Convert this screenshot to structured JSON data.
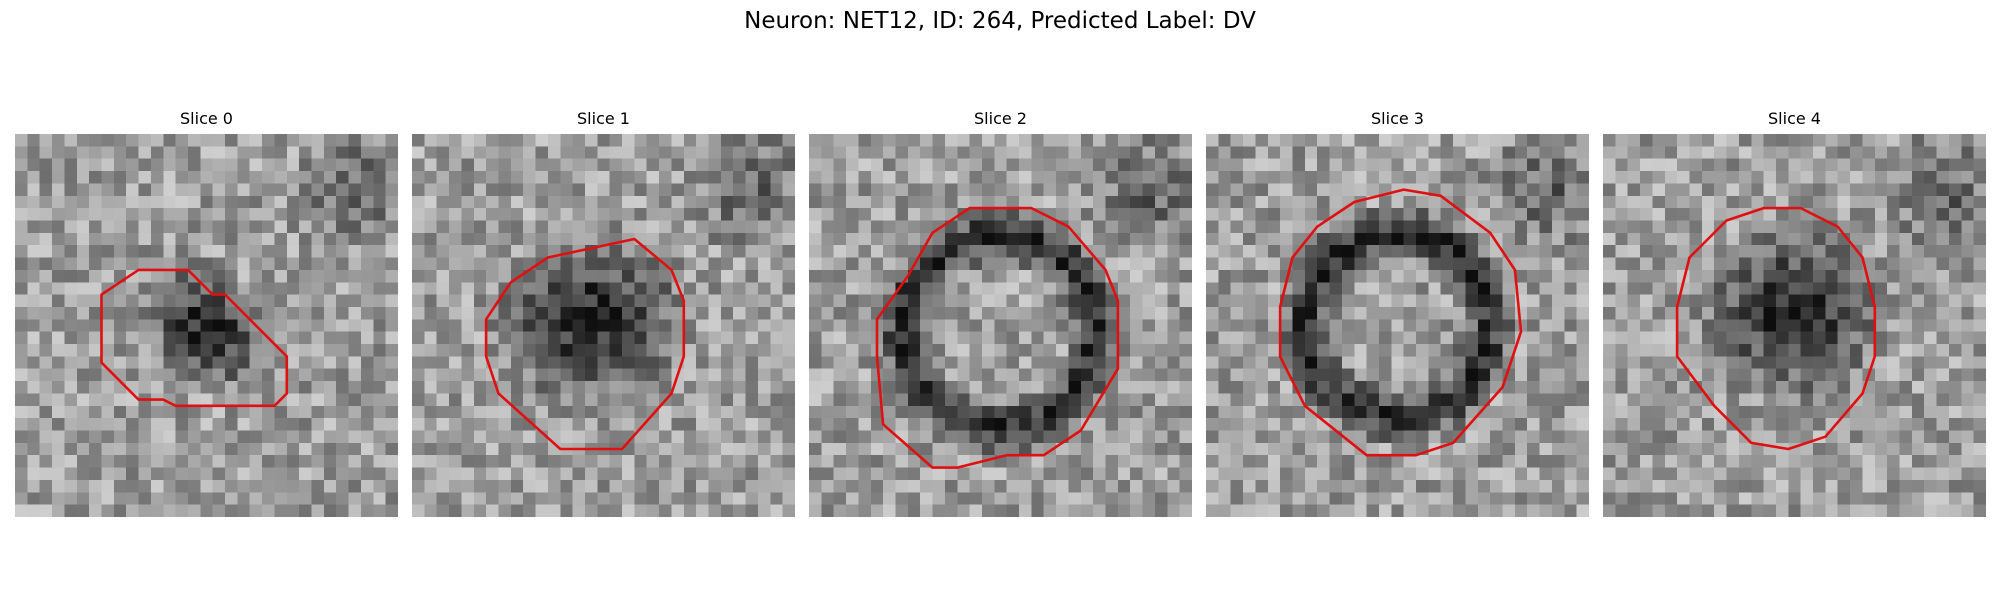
{
  "figure": {
    "title": "Neuron: NET12, ID: 264, Predicted Label: DV"
  },
  "panels": [
    {
      "title": "Slice 0"
    },
    {
      "title": "Slice 1"
    },
    {
      "title": "Slice 2"
    },
    {
      "title": "Slice 3"
    },
    {
      "title": "Slice 4"
    }
  ],
  "colors": {
    "outline": "#e01010",
    "colormap": "grayscale"
  }
}
